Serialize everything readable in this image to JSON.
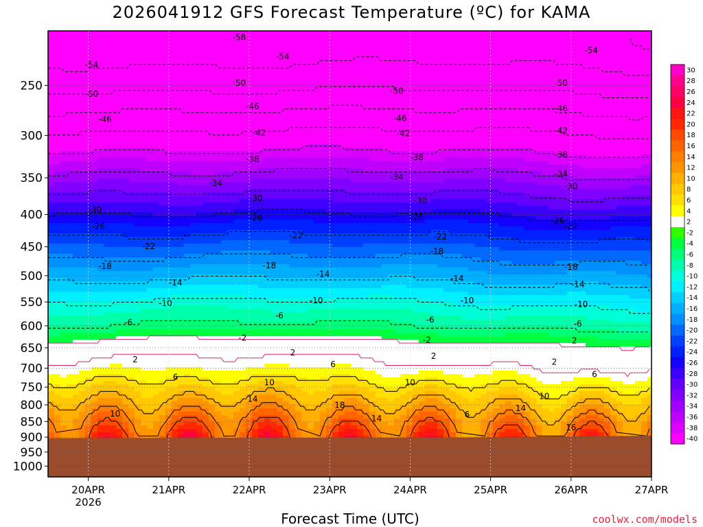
{
  "page": {
    "title": "2026041912 GFS Forecast Temperature (ºC) for KAMA",
    "xlabel": "Forecast Time (UTC)",
    "credit": "coolwx.com/models"
  },
  "chart_data": {
    "type": "heatmap",
    "title": "2026041912 GFS Forecast Temperature (ºC) for KAMA",
    "xlabel": "Forecast Time (UTC)",
    "ylabel": "",
    "y_scale": "log-pressure",
    "ylim": [
      1040,
      205
    ],
    "y_ticks": [
      250,
      300,
      350,
      400,
      450,
      500,
      550,
      600,
      650,
      700,
      750,
      800,
      850,
      900,
      950,
      1000
    ],
    "x_ticks": [
      {
        "label": "20APR",
        "sublabel": "2026",
        "hour": 12
      },
      {
        "label": "21APR",
        "sublabel": "",
        "hour": 36
      },
      {
        "label": "22APR",
        "sublabel": "",
        "hour": 60
      },
      {
        "label": "23APR",
        "sublabel": "",
        "hour": 84
      },
      {
        "label": "24APR",
        "sublabel": "",
        "hour": 108
      },
      {
        "label": "25APR",
        "sublabel": "",
        "hour": 132
      },
      {
        "label": "26APR",
        "sublabel": "",
        "hour": 156
      },
      {
        "label": "27APR",
        "sublabel": "",
        "hour": 180
      }
    ],
    "xlim_hours": [
      0,
      180
    ],
    "grid": true,
    "colorbar": {
      "levels": [
        30,
        28,
        26,
        24,
        22,
        20,
        18,
        16,
        14,
        12,
        10,
        8,
        6,
        4,
        2,
        -2,
        -4,
        -6,
        -8,
        -10,
        -12,
        -14,
        -16,
        -18,
        -20,
        -22,
        -24,
        -26,
        -28,
        -30,
        -32,
        -34,
        -36,
        -38,
        -40
      ],
      "colors": [
        "#ff00c8",
        "#ff0090",
        "#ff0068",
        "#ff0040",
        "#ff1414",
        "#ff2800",
        "#ff4a00",
        "#ff6400",
        "#ff7e00",
        "#ff9600",
        "#ffb000",
        "#ffc800",
        "#ffe000",
        "#ffff00",
        "#ffffff",
        "#30ff00",
        "#00ff40",
        "#00ff78",
        "#00ffaa",
        "#00ffd8",
        "#00f0ff",
        "#00d0ff",
        "#00b0ff",
        "#0090ff",
        "#0068ff",
        "#0040ff",
        "#0020ff",
        "#1400ff",
        "#3c00ff",
        "#6400ff",
        "#8200ff",
        "#a000ff",
        "#be00ff",
        "#dc00ff",
        "#ff00ff"
      ]
    },
    "ground_color": "#9b4c2c",
    "contour_levels": [
      -58,
      -54,
      -50,
      -46,
      -42,
      -38,
      -34,
      -30,
      -26,
      -22,
      -18,
      -14,
      -10,
      -6,
      -2,
      2,
      6,
      10,
      14,
      18
    ],
    "isotherm_profile_base": {
      "pressure_hPa": [
        900,
        850,
        800,
        750,
        700,
        650,
        600,
        550,
        500,
        450,
        400,
        350,
        300,
        250,
        215
      ],
      "temperature_C": [
        18,
        15,
        11,
        7,
        3,
        0,
        -6,
        -10,
        -15,
        -20,
        -26,
        -33,
        -41,
        -51,
        -57
      ]
    },
    "surface_pressure_hPa": [
      {
        "hour": 0,
        "p": 903
      },
      {
        "hour": 60,
        "p": 902
      },
      {
        "hour": 120,
        "p": 901
      },
      {
        "hour": 180,
        "p": 895
      }
    ],
    "contour_labels": [
      {
        "text": "-58",
        "hour": 57,
        "p": 210
      },
      {
        "text": "-54",
        "hour": 13,
        "p": 232
      },
      {
        "text": "-54",
        "hour": 70,
        "p": 225
      },
      {
        "text": "-54",
        "hour": 162,
        "p": 220
      },
      {
        "text": "-50",
        "hour": 13,
        "p": 258
      },
      {
        "text": "-50",
        "hour": 57,
        "p": 248
      },
      {
        "text": "-50",
        "hour": 104,
        "p": 255
      },
      {
        "text": "-50",
        "hour": 153,
        "p": 248
      },
      {
        "text": "-46",
        "hour": 17,
        "p": 283
      },
      {
        "text": "-46",
        "hour": 61,
        "p": 270
      },
      {
        "text": "-46",
        "hour": 105,
        "p": 282
      },
      {
        "text": "-46",
        "hour": 153,
        "p": 272
      },
      {
        "text": "-42",
        "hour": 63,
        "p": 297
      },
      {
        "text": "-42",
        "hour": 106,
        "p": 298
      },
      {
        "text": "-42",
        "hour": 153,
        "p": 295
      },
      {
        "text": "-38",
        "hour": 61,
        "p": 327
      },
      {
        "text": "-38",
        "hour": 110,
        "p": 325
      },
      {
        "text": "-38",
        "hour": 153,
        "p": 322
      },
      {
        "text": "-34",
        "hour": 50,
        "p": 357
      },
      {
        "text": "-34",
        "hour": 104,
        "p": 349
      },
      {
        "text": "-34",
        "hour": 153,
        "p": 345
      },
      {
        "text": "-30",
        "hour": 14,
        "p": 393
      },
      {
        "text": "-30",
        "hour": 62,
        "p": 377
      },
      {
        "text": "-30",
        "hour": 111,
        "p": 380
      },
      {
        "text": "-30",
        "hour": 156,
        "p": 361
      },
      {
        "text": "-26",
        "hour": 15,
        "p": 418
      },
      {
        "text": "-26",
        "hour": 62,
        "p": 405
      },
      {
        "text": "-26",
        "hour": 110,
        "p": 404
      },
      {
        "text": "-26",
        "hour": 152,
        "p": 409
      },
      {
        "text": "-22",
        "hour": 30,
        "p": 449
      },
      {
        "text": "-22",
        "hour": 74,
        "p": 432
      },
      {
        "text": "-22",
        "hour": 117,
        "p": 434
      },
      {
        "text": "-22",
        "hour": 156,
        "p": 418
      },
      {
        "text": "-18",
        "hour": 17,
        "p": 483
      },
      {
        "text": "-18",
        "hour": 66,
        "p": 482
      },
      {
        "text": "-18",
        "hour": 116,
        "p": 458
      },
      {
        "text": "-18",
        "hour": 156,
        "p": 484
      },
      {
        "text": "-14",
        "hour": 38,
        "p": 513
      },
      {
        "text": "-14",
        "hour": 82,
        "p": 497
      },
      {
        "text": "-14",
        "hour": 122,
        "p": 505
      },
      {
        "text": "-14",
        "hour": 158,
        "p": 516
      },
      {
        "text": "-10",
        "hour": 35,
        "p": 553
      },
      {
        "text": "-10",
        "hour": 80,
        "p": 547
      },
      {
        "text": "-10",
        "hour": 125,
        "p": 547
      },
      {
        "text": "-10",
        "hour": 159,
        "p": 555
      },
      {
        "text": "-6",
        "hour": 24,
        "p": 593
      },
      {
        "text": "-6",
        "hour": 69,
        "p": 578
      },
      {
        "text": "-6",
        "hour": 114,
        "p": 587
      },
      {
        "text": "-6",
        "hour": 158,
        "p": 596
      },
      {
        "text": "-2",
        "hour": 58,
        "p": 627
      },
      {
        "text": "-2",
        "hour": 113,
        "p": 632
      },
      {
        "text": "2",
        "hour": 26,
        "p": 678
      },
      {
        "text": "2",
        "hour": 73,
        "p": 662
      },
      {
        "text": "2",
        "hour": 115,
        "p": 670
      },
      {
        "text": "2",
        "hour": 157,
        "p": 633
      },
      {
        "text": "2",
        "hour": 151,
        "p": 684
      },
      {
        "text": "6",
        "hour": 38,
        "p": 723
      },
      {
        "text": "6",
        "hour": 85,
        "p": 690
      },
      {
        "text": "6",
        "hour": 125,
        "p": 828
      },
      {
        "text": "6",
        "hour": 163,
        "p": 716
      },
      {
        "text": "10",
        "hour": 20,
        "p": 826
      },
      {
        "text": "10",
        "hour": 66,
        "p": 738
      },
      {
        "text": "10",
        "hour": 108,
        "p": 738
      },
      {
        "text": "10",
        "hour": 148,
        "p": 775
      },
      {
        "text": "14",
        "hour": 61,
        "p": 783
      },
      {
        "text": "14",
        "hour": 98,
        "p": 841
      },
      {
        "text": "14",
        "hour": 141,
        "p": 810
      },
      {
        "text": "18",
        "hour": 87,
        "p": 801
      },
      {
        "text": "16",
        "hour": 156,
        "p": 869
      }
    ]
  }
}
